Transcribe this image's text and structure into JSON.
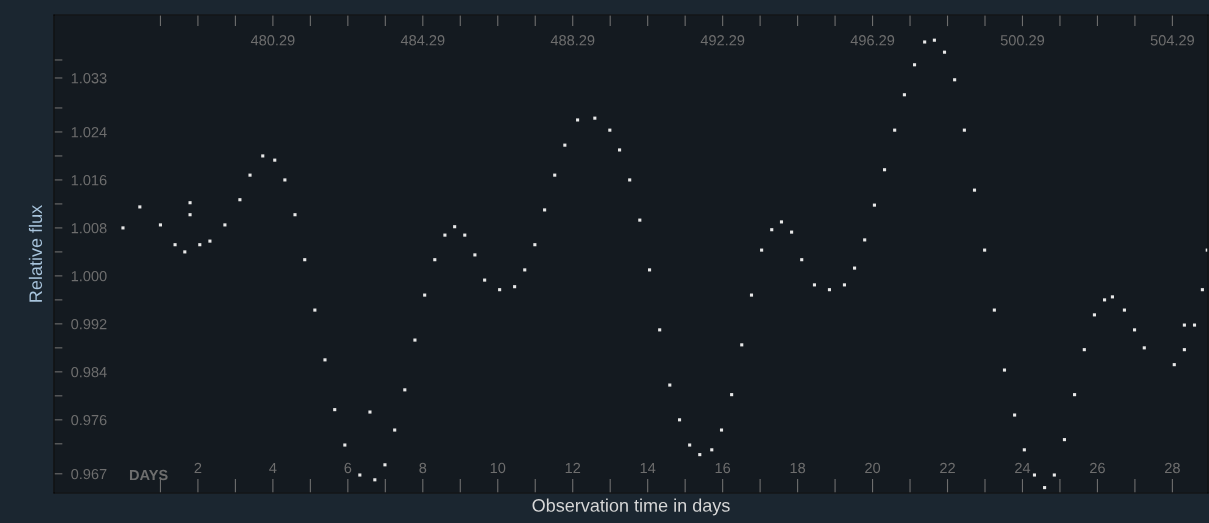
{
  "chart_data": {
    "type": "scatter",
    "xlabel": "Observation time in days",
    "ylabel": "Relative flux",
    "annotations": [
      "DAYS"
    ],
    "x2label": null,
    "xlim": [
      -1.84,
      28.95
    ],
    "ylim": [
      0.9638,
      1.0435
    ],
    "x2lim": [
      474.45,
      505.24
    ],
    "xticks": [
      {
        "value": 1,
        "label": null
      },
      2,
      {
        "value": 3,
        "label": null
      },
      4,
      {
        "value": 5,
        "label": null
      },
      6,
      {
        "value": 7,
        "label": null
      },
      8,
      {
        "value": 9,
        "label": null
      },
      10,
      {
        "value": 11,
        "label": null
      },
      12,
      {
        "value": 13,
        "label": null
      },
      14,
      {
        "value": 15,
        "label": null
      },
      16,
      {
        "value": 17,
        "label": null
      },
      18,
      {
        "value": 19,
        "label": null
      },
      20,
      {
        "value": 21,
        "label": null
      },
      22,
      {
        "value": 23,
        "label": null
      },
      24,
      {
        "value": 25,
        "label": null
      },
      26,
      {
        "value": 27,
        "label": null
      },
      28
    ],
    "x2ticks": [
      {
        "value": 477.29,
        "label": null
      },
      {
        "value": 478.29,
        "label": null
      },
      {
        "value": 479.29,
        "label": null
      },
      480.29,
      {
        "value": 481.29,
        "label": null
      },
      {
        "value": 482.29,
        "label": null
      },
      {
        "value": 483.29,
        "label": null
      },
      484.29,
      {
        "value": 485.29,
        "label": null
      },
      {
        "value": 486.29,
        "label": null
      },
      {
        "value": 487.29,
        "label": null
      },
      488.29,
      {
        "value": 489.29,
        "label": null
      },
      {
        "value": 490.29,
        "label": null
      },
      {
        "value": 491.29,
        "label": null
      },
      492.29,
      {
        "value": 493.29,
        "label": null
      },
      {
        "value": 494.29,
        "label": null
      },
      {
        "value": 495.29,
        "label": null
      },
      496.29,
      {
        "value": 497.29,
        "label": null
      },
      {
        "value": 498.29,
        "label": null
      },
      {
        "value": 499.29,
        "label": null
      },
      500.29,
      {
        "value": 501.29,
        "label": null
      },
      {
        "value": 502.29,
        "label": null
      },
      {
        "value": 503.29,
        "label": null
      },
      504.29
    ],
    "yticks": [
      {
        "value": 1.036,
        "label": null
      },
      1.033,
      {
        "value": 1.028,
        "label": null
      },
      {
        "value": 1.024,
        "label": "1.024"
      },
      {
        "value": 1.02,
        "label": null
      },
      {
        "value": 1.016,
        "label": "1.016"
      },
      {
        "value": 1.012,
        "label": null
      },
      {
        "value": 1.008,
        "label": "1.008"
      },
      {
        "value": 1.004,
        "label": null
      },
      {
        "value": 1.0,
        "label": "1.000"
      },
      {
        "value": 0.996,
        "label": null
      },
      {
        "value": 0.992,
        "label": "0.992"
      },
      {
        "value": 0.988,
        "label": null
      },
      {
        "value": 0.984,
        "label": "0.984"
      },
      {
        "value": 0.98,
        "label": null
      },
      {
        "value": 0.976,
        "label": "0.976"
      },
      {
        "value": 0.972,
        "label": null
      },
      0.967
    ],
    "grid": false,
    "marker": "square",
    "series": [
      {
        "color": "#e8e8e8",
        "x": [
          0,
          0.45,
          1.0,
          1.39,
          1.65,
          1.79,
          1.79,
          2.05,
          2.32,
          2.72,
          3.12,
          3.39,
          3.73,
          4.05,
          4.32,
          4.59,
          4.85,
          5.12,
          5.39,
          5.65,
          5.92,
          6.32,
          6.59,
          6.72,
          6.99,
          7.25,
          7.52,
          7.79,
          8.05,
          8.32,
          8.59,
          8.85,
          9.12,
          9.39,
          9.65,
          10.05,
          10.45,
          10.72,
          10.99,
          11.25,
          11.52,
          11.79,
          12.13,
          12.59,
          12.99,
          13.25,
          13.52,
          13.79,
          14.05,
          14.32,
          14.59,
          14.85,
          15.12,
          15.39,
          15.71,
          15.97,
          16.24,
          16.51,
          16.77,
          17.04,
          17.31,
          17.57,
          17.84,
          18.11,
          18.45,
          18.85,
          19.25,
          19.52,
          19.79,
          20.05,
          20.32,
          20.59,
          20.85,
          21.12,
          21.39,
          21.65,
          21.92,
          22.19,
          22.45,
          22.72,
          22.99,
          23.25,
          23.52,
          23.79,
          24.05,
          24.32,
          24.59,
          24.85,
          25.12,
          25.39,
          25.65,
          25.92,
          26.19,
          26.4,
          26.72,
          26.99,
          27.25,
          28.05,
          28.32,
          28.32,
          28.59,
          28.8,
          28.93
        ],
        "values": [
          1.008,
          1.0115,
          1.0085,
          1.0052,
          1.004,
          1.0122,
          1.0102,
          1.0052,
          1.0058,
          1.0085,
          1.0127,
          1.0168,
          1.02,
          1.0193,
          1.016,
          1.0102,
          1.0027,
          0.9943,
          0.986,
          0.9777,
          0.9718,
          0.9668,
          0.9773,
          0.966,
          0.9685,
          0.9743,
          0.981,
          0.9893,
          0.9968,
          1.0027,
          1.0068,
          1.0082,
          1.0068,
          1.0035,
          0.9993,
          0.9977,
          0.9982,
          1.001,
          1.0052,
          1.011,
          1.0168,
          1.0218,
          1.026,
          1.0263,
          1.0243,
          1.021,
          1.016,
          1.0093,
          1.001,
          0.991,
          0.9818,
          0.976,
          0.9718,
          0.9702,
          0.971,
          0.9743,
          0.9802,
          0.9885,
          0.9968,
          1.0043,
          1.0077,
          1.009,
          1.0073,
          1.0027,
          0.9985,
          0.9977,
          0.9985,
          1.0013,
          1.006,
          1.0118,
          1.0177,
          1.0243,
          1.0302,
          1.0352,
          1.039,
          1.0393,
          1.0373,
          1.0327,
          1.0243,
          1.0143,
          1.0043,
          0.9943,
          0.9843,
          0.9768,
          0.971,
          0.9668,
          0.9647,
          0.9668,
          0.9727,
          0.9802,
          0.9877,
          0.9935,
          0.996,
          0.9965,
          0.9943,
          0.991,
          0.988,
          0.9852,
          0.9877,
          0.9918,
          0.9918,
          0.9977,
          1.0043
        ]
      }
    ]
  }
}
